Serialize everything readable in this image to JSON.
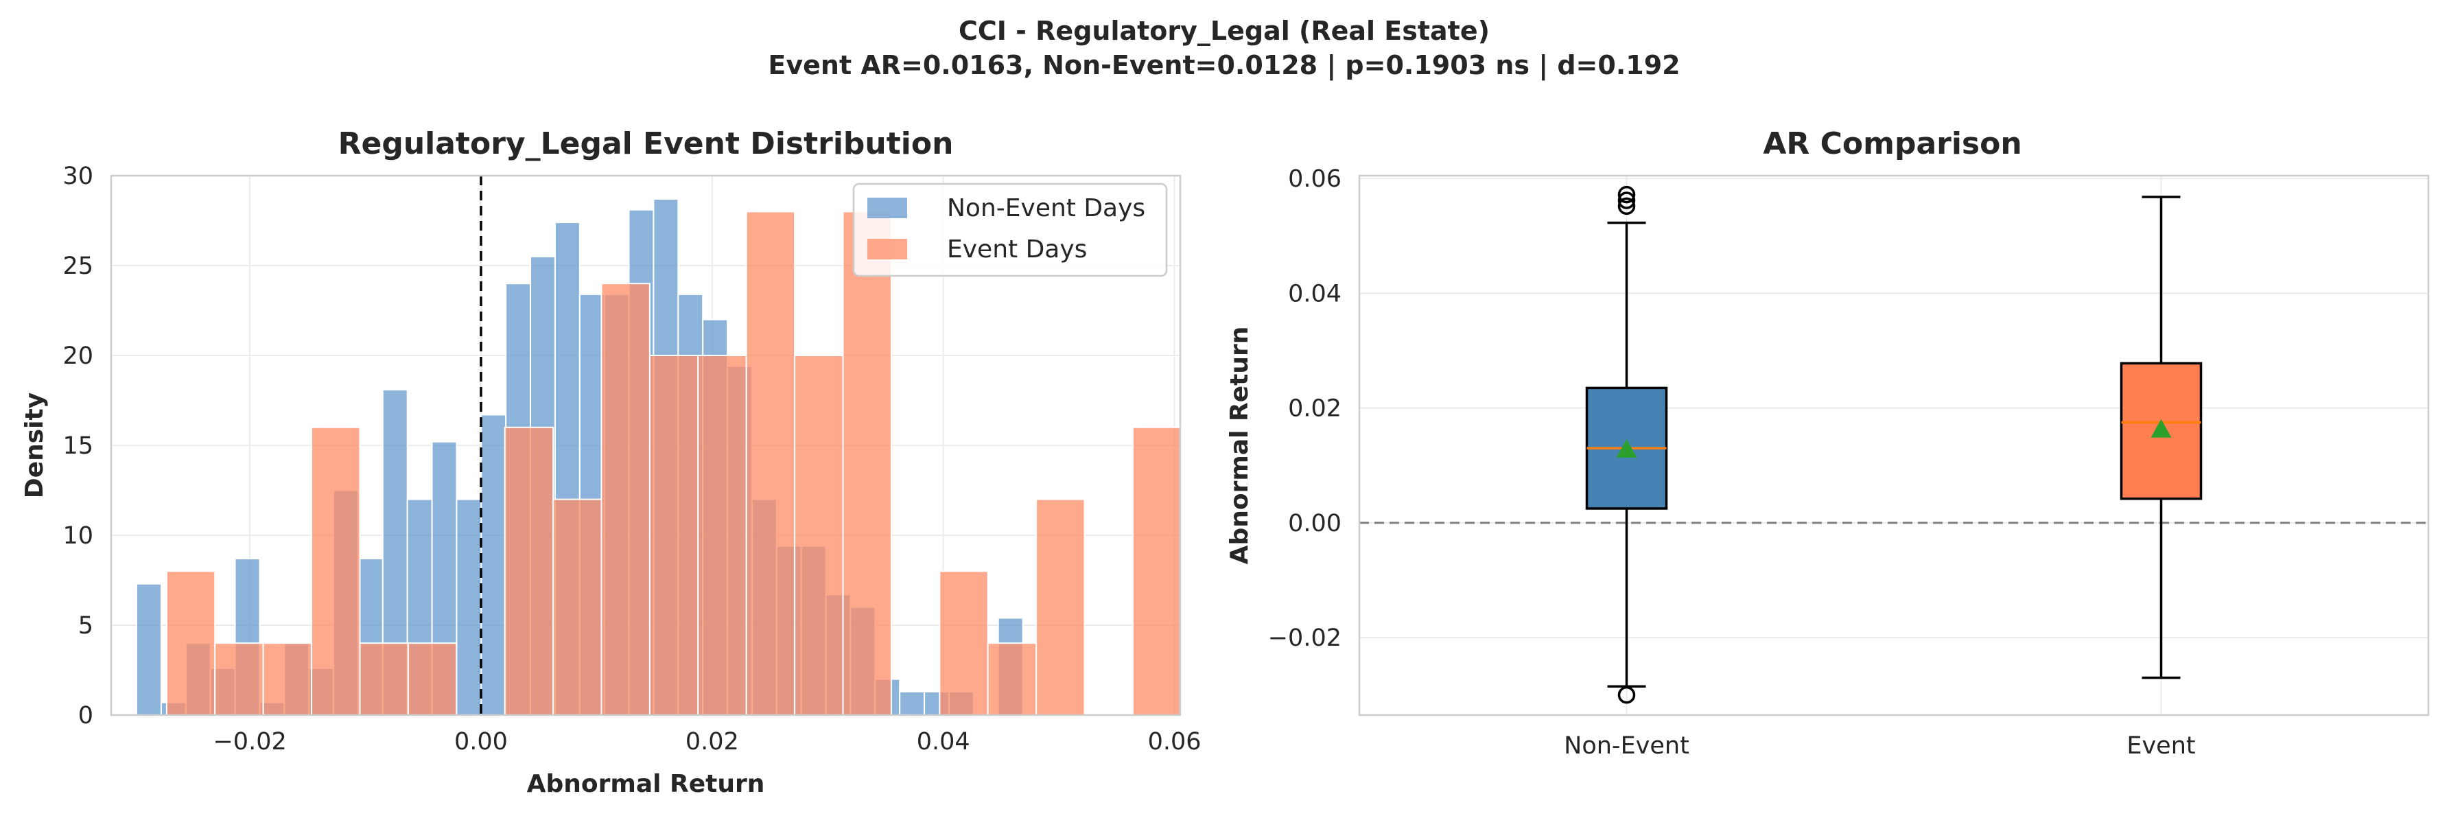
{
  "suptitle": {
    "line1": "CCI - Regulatory_Legal (Real Estate)",
    "line2": "Event AR=0.0163, Non-Event=0.0128 | p=0.1903 ns | d=0.192"
  },
  "chart_data": [
    {
      "type": "histogram",
      "title": "Regulatory_Legal Event Distribution",
      "xlabel": "Abnormal Return",
      "ylabel": "Density",
      "xlim": [
        -0.032,
        0.0605
      ],
      "ylim": [
        0,
        30
      ],
      "xticks": [
        -0.02,
        0.0,
        0.02,
        0.04,
        0.06
      ],
      "xtick_labels": [
        "−0.02",
        "0.00",
        "0.02",
        "0.04",
        "0.06"
      ],
      "yticks": [
        0,
        5,
        10,
        15,
        20,
        25,
        30
      ],
      "ytick_labels": [
        "0",
        "5",
        "10",
        "15",
        "20",
        "25",
        "30"
      ],
      "grid": true,
      "legend_position": "top-right",
      "reference_line": {
        "x": 0.0,
        "style": "dashed",
        "color": "#000000"
      },
      "series": [
        {
          "name": "Non-Event Days",
          "color": "#6699cc",
          "opacity": 0.75,
          "bin_start": -0.0298,
          "bin_width": 0.00213,
          "values": [
            7.3,
            0.7,
            4.0,
            2.6,
            8.7,
            0.7,
            4.0,
            2.6,
            12.5,
            8.7,
            18.1,
            12.0,
            15.2,
            12.0,
            16.7,
            24.0,
            25.5,
            27.4,
            23.4,
            23.4,
            28.1,
            28.7,
            23.4,
            22.0,
            19.4,
            12.0,
            9.4,
            9.4,
            6.7,
            6.0,
            2.0,
            1.3,
            1.3,
            1.3,
            0.0,
            5.4
          ]
        },
        {
          "name": "Event Days",
          "color": "#ff8c66",
          "opacity": 0.75,
          "bin_start": -0.0272,
          "bin_width": 0.00418,
          "values": [
            8.0,
            4.0,
            4.0,
            16.0,
            4.0,
            4.0,
            0.0,
            16.0,
            12.0,
            24.0,
            20.0,
            20.0,
            28.0,
            20.0,
            28.0,
            0.0,
            8.0,
            4.0,
            12.0,
            0.0,
            16.0
          ]
        }
      ]
    },
    {
      "type": "box",
      "title": "AR Comparison",
      "xlabel": "",
      "ylabel": "Abnormal Return",
      "ylim": [
        -0.0335,
        0.0605
      ],
      "yticks": [
        -0.02,
        0.0,
        0.02,
        0.04,
        0.06
      ],
      "ytick_labels": [
        "−0.02",
        "0.00",
        "0.02",
        "0.04",
        "0.06"
      ],
      "categories": [
        "Non-Event",
        "Event"
      ],
      "grid": true,
      "reference_line": {
        "y": 0.0,
        "style": "dashed",
        "color": "#808080"
      },
      "boxes": [
        {
          "name": "Non-Event",
          "color": "#4682b4",
          "whisker_low": -0.0285,
          "q1": 0.0025,
          "median": 0.013,
          "mean": 0.0128,
          "q3": 0.0235,
          "whisker_high": 0.0523,
          "outliers": [
            -0.03,
            0.0552,
            0.0562,
            0.0572
          ]
        },
        {
          "name": "Event",
          "color": "#ff7f50",
          "whisker_low": -0.027,
          "q1": 0.0042,
          "median": 0.0175,
          "mean": 0.0163,
          "q3": 0.0278,
          "whisker_high": 0.0568,
          "outliers": []
        }
      ],
      "median_color": "#ff7f0e",
      "mean_marker_color": "#2ca02c"
    }
  ]
}
